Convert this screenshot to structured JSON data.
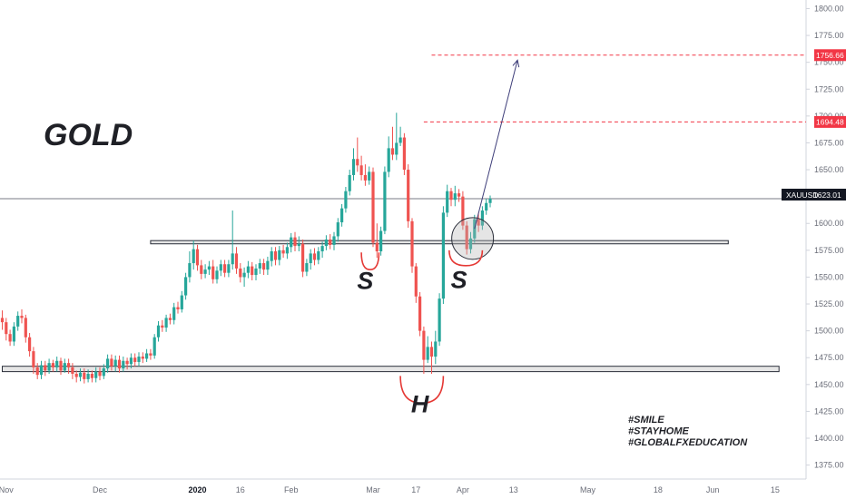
{
  "chart_data": {
    "type": "candlestick",
    "title": "GOLD",
    "symbol": "XAUUSD",
    "y_axis": {
      "ylim": [
        1362,
        1808
      ],
      "ticks": [
        1375,
        1400,
        1425,
        1450,
        1475,
        1500,
        1525,
        1550,
        1575,
        1600,
        1625,
        1650,
        1675,
        1700,
        1725,
        1750,
        1775,
        1800
      ],
      "tick_labels": [
        "1375.00",
        "1400.00",
        "1425.00",
        "1450.00",
        "1475.00",
        "1500.00",
        "1525.00",
        "1550.00",
        "1575.00",
        "1600.00",
        "1625.00",
        "1650.00",
        "1675.00",
        "1700.00",
        "1725.00",
        "1750.00",
        "1775.00",
        "1800.00"
      ]
    },
    "x_axis": {
      "labels": [
        "Nov",
        "Dec",
        "2020",
        "16",
        "Feb",
        "Mar",
        "17",
        "Apr",
        "13",
        "May",
        "18",
        "Jun",
        "15"
      ],
      "bold_labels": [
        "2020"
      ],
      "label_positions_index": [
        1,
        25,
        50,
        61,
        74,
        95,
        106,
        118,
        131,
        150,
        168,
        182,
        198
      ]
    },
    "current_price": {
      "symbol": "XAUUSD",
      "value": 1623.01,
      "label": "1623.01"
    },
    "targets": [
      {
        "value": 1756.66,
        "label": "1756.66",
        "from_index": 110
      },
      {
        "value": 1694.48,
        "label": "1694.48",
        "from_index": 108
      }
    ],
    "zones": [
      {
        "name": "neckline",
        "low": 1581,
        "high": 1584,
        "from_index": 38,
        "to_index": 186
      },
      {
        "name": "support",
        "low": 1462,
        "high": 1467,
        "from_index": 0,
        "to_index": 199
      }
    ],
    "annotations": [
      {
        "text": "S",
        "index": 93,
        "value": 1539
      },
      {
        "text": "S",
        "index": 117,
        "value": 1540
      },
      {
        "text": "H",
        "index": 107,
        "value": 1424
      }
    ],
    "hashtags": [
      "#SMILE",
      "#STAYHOME",
      "#GLOBALFXEDUCATION"
    ],
    "arrow": {
      "from_index": 121,
      "from_value": 1595,
      "to_index": 132,
      "to_value": 1752
    },
    "candles": [
      [
        1512,
        1508,
        1501,
        1519
      ],
      [
        1508,
        1497,
        1491,
        1512
      ],
      [
        1497,
        1490,
        1486,
        1501
      ],
      [
        1490,
        1504,
        1486,
        1508
      ],
      [
        1504,
        1514,
        1500,
        1518
      ],
      [
        1514,
        1512,
        1507,
        1520
      ],
      [
        1512,
        1494,
        1489,
        1515
      ],
      [
        1494,
        1481,
        1476,
        1498
      ],
      [
        1481,
        1466,
        1460,
        1485
      ],
      [
        1466,
        1459,
        1455,
        1470
      ],
      [
        1459,
        1468,
        1455,
        1472
      ],
      [
        1468,
        1463,
        1458,
        1472
      ],
      [
        1463,
        1470,
        1460,
        1474
      ],
      [
        1470,
        1466,
        1462,
        1473
      ],
      [
        1466,
        1472,
        1462,
        1476
      ],
      [
        1472,
        1463,
        1459,
        1475
      ],
      [
        1463,
        1470,
        1461,
        1474
      ],
      [
        1470,
        1466,
        1460,
        1474
      ],
      [
        1466,
        1460,
        1455,
        1470
      ],
      [
        1460,
        1457,
        1452,
        1463
      ],
      [
        1457,
        1461,
        1453,
        1465
      ],
      [
        1461,
        1455,
        1451,
        1465
      ],
      [
        1455,
        1460,
        1452,
        1464
      ],
      [
        1460,
        1456,
        1452,
        1463
      ],
      [
        1456,
        1462,
        1452,
        1466
      ],
      [
        1462,
        1458,
        1454,
        1466
      ],
      [
        1458,
        1465,
        1455,
        1469
      ],
      [
        1465,
        1474,
        1461,
        1478
      ],
      [
        1474,
        1467,
        1463,
        1478
      ],
      [
        1467,
        1473,
        1462,
        1477
      ],
      [
        1473,
        1465,
        1461,
        1477
      ],
      [
        1465,
        1472,
        1462,
        1476
      ],
      [
        1472,
        1469,
        1464,
        1475
      ],
      [
        1469,
        1475,
        1465,
        1479
      ],
      [
        1475,
        1471,
        1467,
        1479
      ],
      [
        1471,
        1476,
        1467,
        1480
      ],
      [
        1476,
        1474,
        1470,
        1480
      ],
      [
        1474,
        1479,
        1471,
        1483
      ],
      [
        1479,
        1477,
        1473,
        1483
      ],
      [
        1477,
        1494,
        1474,
        1497
      ],
      [
        1494,
        1505,
        1490,
        1509
      ],
      [
        1505,
        1503,
        1499,
        1510
      ],
      [
        1503,
        1512,
        1499,
        1515
      ],
      [
        1512,
        1510,
        1506,
        1516
      ],
      [
        1510,
        1522,
        1506,
        1526
      ],
      [
        1522,
        1520,
        1516,
        1527
      ],
      [
        1520,
        1533,
        1517,
        1537
      ],
      [
        1533,
        1550,
        1529,
        1554
      ],
      [
        1550,
        1563,
        1545,
        1574
      ],
      [
        1563,
        1576,
        1557,
        1584
      ],
      [
        1576,
        1561,
        1556,
        1580
      ],
      [
        1561,
        1553,
        1548,
        1566
      ],
      [
        1553,
        1557,
        1549,
        1562
      ],
      [
        1557,
        1560,
        1552,
        1565
      ],
      [
        1560,
        1548,
        1544,
        1566
      ],
      [
        1548,
        1556,
        1544,
        1560
      ],
      [
        1556,
        1562,
        1551,
        1566
      ],
      [
        1562,
        1554,
        1550,
        1566
      ],
      [
        1554,
        1562,
        1550,
        1566
      ],
      [
        1562,
        1572,
        1557,
        1612
      ],
      [
        1572,
        1558,
        1553,
        1578
      ],
      [
        1558,
        1550,
        1545,
        1563
      ],
      [
        1550,
        1554,
        1541,
        1559
      ],
      [
        1554,
        1560,
        1549,
        1565
      ],
      [
        1560,
        1552,
        1547,
        1564
      ],
      [
        1552,
        1558,
        1547,
        1562
      ],
      [
        1558,
        1563,
        1553,
        1567
      ],
      [
        1563,
        1557,
        1552,
        1567
      ],
      [
        1557,
        1565,
        1552,
        1569
      ],
      [
        1565,
        1574,
        1560,
        1578
      ],
      [
        1574,
        1566,
        1561,
        1578
      ],
      [
        1566,
        1575,
        1561,
        1579
      ],
      [
        1575,
        1572,
        1568,
        1580
      ],
      [
        1572,
        1578,
        1567,
        1582
      ],
      [
        1578,
        1587,
        1573,
        1591
      ],
      [
        1587,
        1579,
        1574,
        1592
      ],
      [
        1579,
        1581,
        1574,
        1588
      ],
      [
        1581,
        1555,
        1550,
        1585
      ],
      [
        1555,
        1563,
        1551,
        1567
      ],
      [
        1563,
        1572,
        1557,
        1576
      ],
      [
        1572,
        1566,
        1561,
        1577
      ],
      [
        1566,
        1574,
        1562,
        1578
      ],
      [
        1574,
        1579,
        1568,
        1583
      ],
      [
        1579,
        1585,
        1575,
        1589
      ],
      [
        1585,
        1580,
        1576,
        1590
      ],
      [
        1580,
        1588,
        1575,
        1592
      ],
      [
        1588,
        1601,
        1583,
        1605
      ],
      [
        1601,
        1614,
        1597,
        1618
      ],
      [
        1614,
        1630,
        1610,
        1634
      ],
      [
        1630,
        1645,
        1626,
        1650
      ],
      [
        1645,
        1660,
        1640,
        1670
      ],
      [
        1660,
        1654,
        1648,
        1680
      ],
      [
        1654,
        1645,
        1640,
        1663
      ],
      [
        1645,
        1640,
        1635,
        1655
      ],
      [
        1640,
        1648,
        1636,
        1653
      ],
      [
        1648,
        1582,
        1578,
        1652
      ],
      [
        1582,
        1574,
        1568,
        1600
      ],
      [
        1574,
        1593,
        1570,
        1597
      ],
      [
        1593,
        1648,
        1590,
        1653
      ],
      [
        1648,
        1670,
        1643,
        1681
      ],
      [
        1670,
        1664,
        1659,
        1690
      ],
      [
        1664,
        1675,
        1659,
        1703
      ],
      [
        1675,
        1680,
        1672,
        1690
      ],
      [
        1680,
        1650,
        1645,
        1684
      ],
      [
        1650,
        1602,
        1596,
        1655
      ],
      [
        1602,
        1560,
        1554,
        1605
      ],
      [
        1560,
        1532,
        1526,
        1563
      ],
      [
        1532,
        1500,
        1495,
        1536
      ],
      [
        1500,
        1473,
        1460,
        1504
      ],
      [
        1473,
        1485,
        1470,
        1495
      ],
      [
        1485,
        1476,
        1460,
        1490
      ],
      [
        1476,
        1490,
        1469,
        1500
      ],
      [
        1490,
        1530,
        1486,
        1535
      ],
      [
        1530,
        1610,
        1525,
        1616
      ],
      [
        1610,
        1630,
        1606,
        1636
      ],
      [
        1630,
        1622,
        1616,
        1633
      ],
      [
        1622,
        1628,
        1616,
        1635
      ],
      [
        1628,
        1625,
        1620,
        1632
      ],
      [
        1625,
        1598,
        1594,
        1630
      ],
      [
        1598,
        1576,
        1571,
        1602
      ],
      [
        1576,
        1586,
        1572,
        1592
      ],
      [
        1586,
        1604,
        1582,
        1608
      ],
      [
        1604,
        1598,
        1592,
        1610
      ],
      [
        1598,
        1612,
        1594,
        1616
      ],
      [
        1612,
        1619,
        1608,
        1623
      ],
      [
        1619,
        1623,
        1615,
        1626
      ]
    ]
  }
}
